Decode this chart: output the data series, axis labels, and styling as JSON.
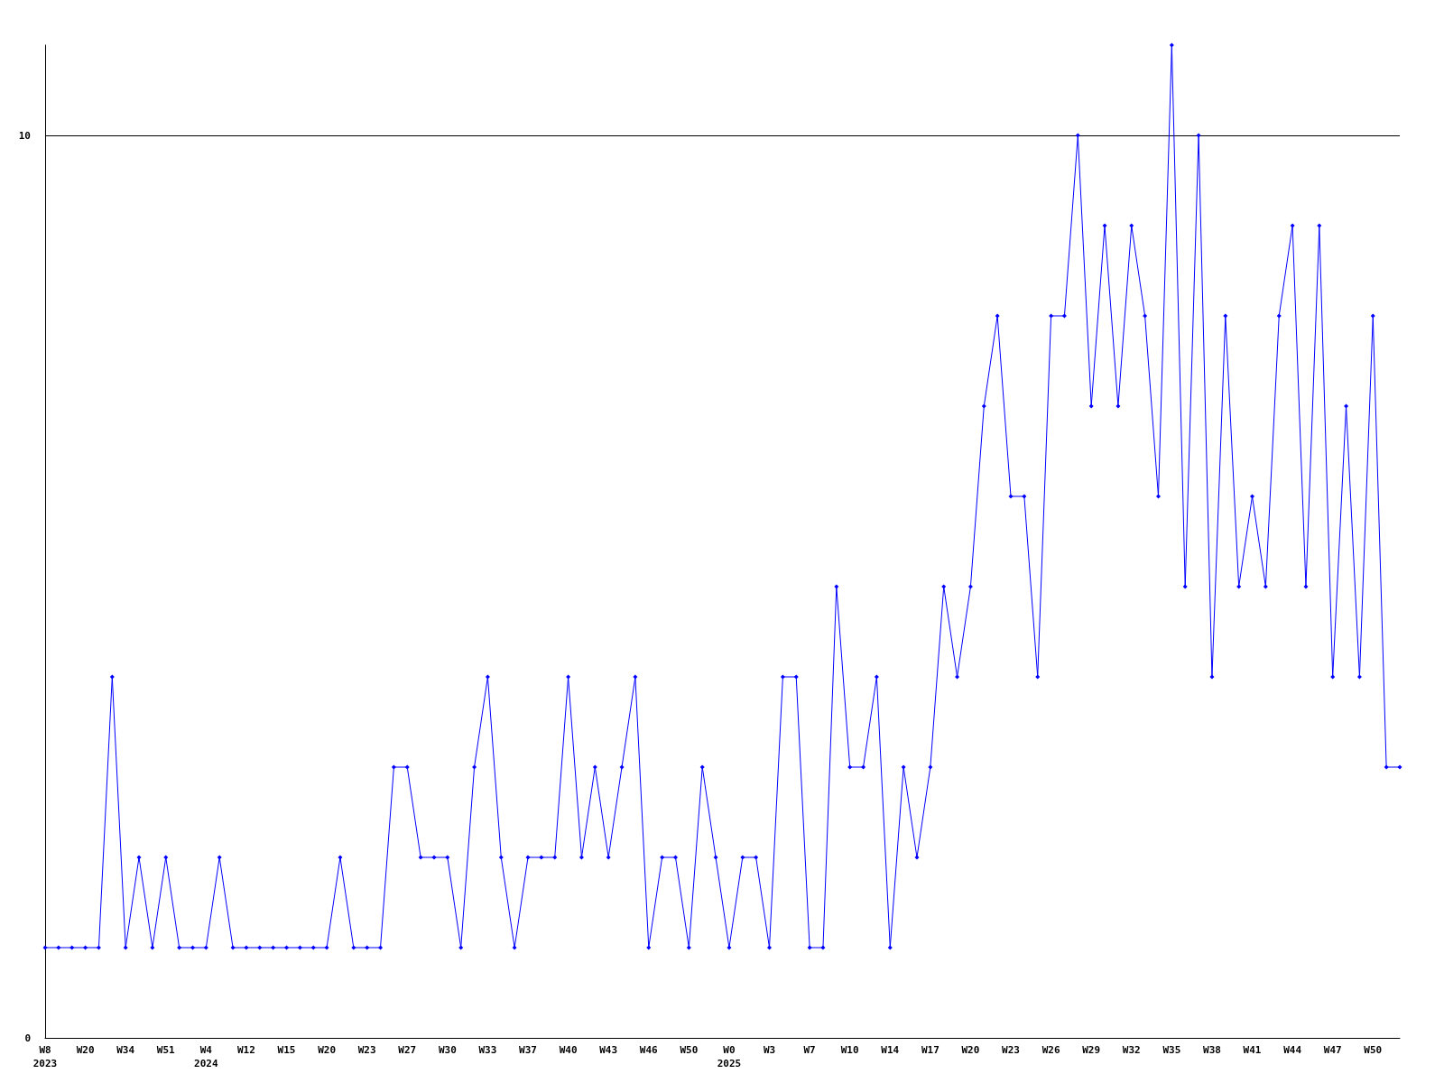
{
  "chart_data": {
    "type": "line",
    "categories": [
      "W8\n2023",
      null,
      null,
      "W20",
      null,
      null,
      "W34",
      null,
      null,
      "W51",
      null,
      null,
      "W4\n2024",
      null,
      null,
      "W12",
      null,
      null,
      "W15",
      null,
      null,
      "W20",
      null,
      null,
      "W23",
      null,
      null,
      "W27",
      null,
      null,
      "W30",
      null,
      null,
      "W33",
      null,
      null,
      "W37",
      null,
      null,
      "W40",
      null,
      null,
      "W43",
      null,
      null,
      "W46",
      null,
      null,
      "W50",
      null,
      null,
      "W0\n2025",
      null,
      null,
      "W3",
      null,
      null,
      "W7",
      null,
      null,
      "W10",
      null,
      null,
      "W14",
      null,
      null,
      "W17",
      null,
      null,
      "W20",
      null,
      null,
      "W23",
      null,
      null,
      "W26",
      null,
      null,
      "W29",
      null,
      null,
      "W32",
      null,
      null,
      "W35",
      null,
      null,
      "W38",
      null,
      null,
      "W41",
      null,
      null,
      "W44",
      null,
      null,
      "W47",
      null,
      null,
      "W50",
      null,
      null
    ],
    "series": [
      {
        "color": "#0000ff",
        "values": [
          1,
          1,
          1,
          1,
          1,
          4,
          1,
          2,
          1,
          2,
          1,
          1,
          1,
          2,
          1,
          1,
          1,
          1,
          1,
          1,
          1,
          1,
          2,
          1,
          1,
          1,
          3,
          3,
          2,
          2,
          2,
          1,
          3,
          4,
          2,
          1,
          2,
          2,
          2,
          4,
          2,
          3,
          2,
          3,
          4,
          1,
          2,
          2,
          1,
          3,
          2,
          1,
          2,
          2,
          1,
          4,
          4,
          1,
          1,
          5,
          3,
          3,
          4,
          1,
          3,
          2,
          3,
          5,
          4,
          5,
          7,
          8,
          6,
          6,
          4,
          8,
          8,
          10,
          7,
          9,
          7,
          9,
          8,
          6,
          11,
          5,
          10,
          4,
          8,
          5,
          6,
          5,
          8,
          9,
          5,
          9,
          4,
          7,
          4,
          8,
          3,
          3
        ]
      }
    ],
    "ylim": [
      0,
      11
    ],
    "yticks": [
      0,
      10
    ],
    "grid": "y",
    "marker": "diamond",
    "line_style": "solid"
  }
}
